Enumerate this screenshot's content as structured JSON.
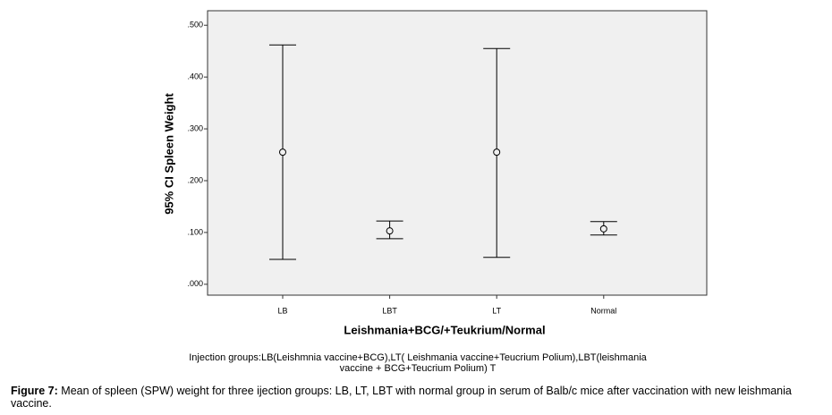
{
  "chart_data": {
    "type": "errorbar",
    "y_label": "95% CI Spleen Weight",
    "x_label": "Leishmania+BCG/+Teukrium/Normal",
    "categories": [
      "LB",
      "LBT",
      "LT",
      "Normal"
    ],
    "values": [
      0.255,
      0.103,
      0.255,
      0.107
    ],
    "lower": [
      0.048,
      0.088,
      0.052,
      0.095
    ],
    "upper": [
      0.462,
      0.122,
      0.455,
      0.121
    ],
    "color": "#000000",
    "ylim": [
      -0.021,
      0.528
    ],
    "yticks": [
      {
        "value": 0,
        "label": ".000"
      },
      {
        "value": 0.1,
        "label": ".100"
      },
      {
        "value": 0.2,
        "label": ".200"
      },
      {
        "value": 0.3,
        "label": ".300"
      },
      {
        "value": 0.4,
        "label": ".400"
      },
      {
        "value": 0.5,
        "label": ".500"
      }
    ],
    "grid": false,
    "note": [
      "Injection groups:LB(Leishmnia vaccine+BCG),LT( Leishmania vaccine+Teucrium Polium),LBT(leishmania",
      "vaccine + BCG+Teucrium Polium)   T"
    ]
  },
  "caption": {
    "label": "Figure 7:",
    "text": "Mean of spleen (SPW) weight for three ijection groups: LB, LT, LBT with normal group in serum of Balb/c mice after vaccination with new leishmania vaccine."
  }
}
